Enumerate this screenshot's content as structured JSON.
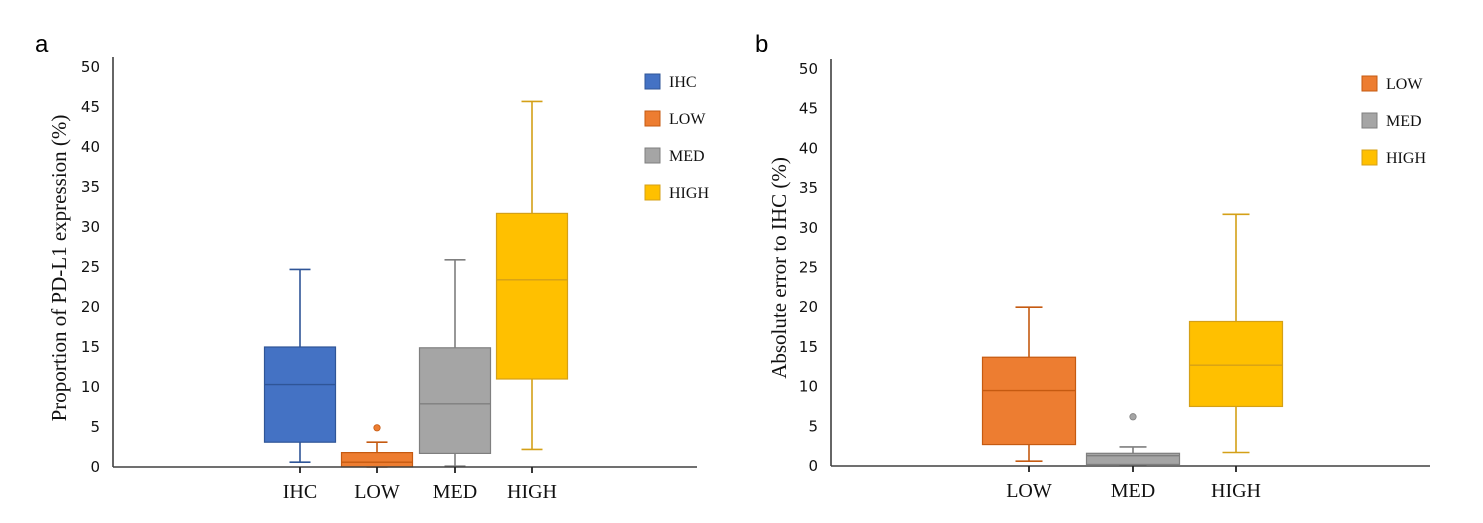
{
  "chart_data": [
    {
      "type": "boxplot",
      "panel": "a",
      "title": "",
      "xlabel": "",
      "ylabel": "Proportion of PD-L1 expression (%)",
      "ylim": [
        0,
        50
      ],
      "yticks": [
        0,
        5,
        10,
        15,
        20,
        25,
        30,
        35,
        40,
        45,
        50
      ],
      "grid": false,
      "legend_position": "top-right",
      "categories": [
        "IHC",
        "LOW",
        "MED",
        "HIGH"
      ],
      "series": [
        {
          "name": "IHC",
          "color": "#4472C4",
          "edge": "#2F5597",
          "min": 0.6,
          "q1": 3.1,
          "median": 10.3,
          "q3": 15.0,
          "max": 24.7,
          "outliers": []
        },
        {
          "name": "LOW",
          "color": "#ED7D31",
          "edge": "#C55A11",
          "min": 0.0,
          "q1": 0.0,
          "median": 0.6,
          "q3": 1.8,
          "max": 3.1,
          "outliers": [
            4.9
          ]
        },
        {
          "name": "MED",
          "color": "#A5A5A5",
          "edge": "#7F7F7F",
          "min": 0.1,
          "q1": 1.7,
          "median": 7.9,
          "q3": 14.9,
          "max": 25.9,
          "outliers": []
        },
        {
          "name": "HIGH",
          "color": "#FFC000",
          "edge": "#D4A017",
          "min": 2.2,
          "q1": 11.0,
          "median": 23.4,
          "q3": 31.7,
          "max": 45.7,
          "outliers": []
        }
      ]
    },
    {
      "type": "boxplot",
      "panel": "b",
      "title": "",
      "xlabel": "",
      "ylabel": "Absolute error to IHC (%)",
      "ylim": [
        0,
        50
      ],
      "yticks": [
        0,
        5,
        10,
        15,
        20,
        25,
        30,
        35,
        40,
        45,
        50
      ],
      "grid": false,
      "legend_position": "top-right",
      "categories": [
        "LOW",
        "MED",
        "HIGH"
      ],
      "series": [
        {
          "name": "LOW",
          "color": "#ED7D31",
          "edge": "#C55A11",
          "min": 0.6,
          "q1": 2.7,
          "median": 9.5,
          "q3": 13.7,
          "max": 20.0,
          "outliers": []
        },
        {
          "name": "MED",
          "color": "#A5A5A5",
          "edge": "#7F7F7F",
          "min": 0.2,
          "q1": 0.2,
          "median": 1.3,
          "q3": 1.6,
          "max": 2.4,
          "outliers": [
            6.2
          ]
        },
        {
          "name": "HIGH",
          "color": "#FFC000",
          "edge": "#D4A017",
          "min": 1.7,
          "q1": 7.5,
          "median": 12.7,
          "q3": 18.2,
          "max": 31.7,
          "outliers": []
        }
      ]
    }
  ]
}
